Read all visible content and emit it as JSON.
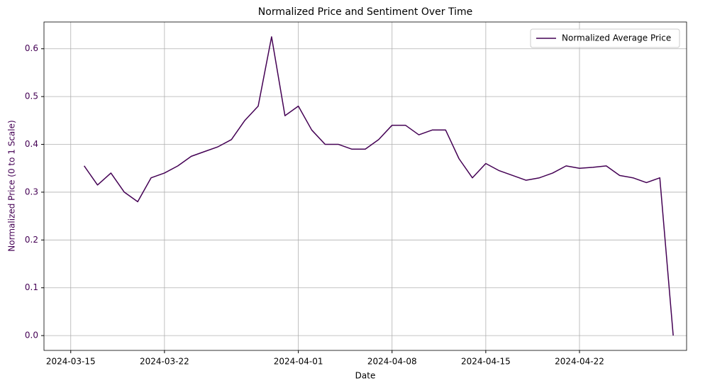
{
  "chart_data": {
    "type": "line",
    "title": "Normalized Price and Sentiment Over Time",
    "x_label": "Date",
    "y_label": "Normalized Price (0 to 1 Scale)",
    "x": [
      "2024-03-16",
      "2024-03-17",
      "2024-03-18",
      "2024-03-19",
      "2024-03-20",
      "2024-03-21",
      "2024-03-22",
      "2024-03-23",
      "2024-03-24",
      "2024-03-25",
      "2024-03-26",
      "2024-03-27",
      "2024-03-28",
      "2024-03-29",
      "2024-03-30",
      "2024-03-31",
      "2024-04-01",
      "2024-04-02",
      "2024-04-03",
      "2024-04-04",
      "2024-04-05",
      "2024-04-06",
      "2024-04-07",
      "2024-04-08",
      "2024-04-09",
      "2024-04-10",
      "2024-04-11",
      "2024-04-12",
      "2024-04-13",
      "2024-04-14",
      "2024-04-15",
      "2024-04-16",
      "2024-04-17",
      "2024-04-18",
      "2024-04-19",
      "2024-04-20",
      "2024-04-21",
      "2024-04-22",
      "2024-04-23",
      "2024-04-24",
      "2024-04-25",
      "2024-04-26",
      "2024-04-27",
      "2024-04-28",
      "2024-04-29"
    ],
    "series": [
      {
        "name": "Normalized Average Price",
        "color": "#440154",
        "values": [
          0.355,
          0.315,
          0.34,
          0.3,
          0.28,
          0.33,
          0.34,
          0.355,
          0.375,
          0.385,
          0.395,
          0.41,
          0.45,
          0.48,
          0.625,
          0.46,
          0.48,
          0.43,
          0.4,
          0.4,
          0.39,
          0.39,
          0.41,
          0.44,
          0.44,
          0.42,
          0.43,
          0.43,
          0.37,
          0.33,
          0.36,
          0.345,
          0.335,
          0.325,
          0.33,
          0.34,
          0.355,
          0.35,
          0.352,
          0.355,
          0.335,
          0.33,
          0.32,
          0.33,
          0.0
        ]
      }
    ],
    "xlim": [
      "2024-03-13",
      "2024-04-30"
    ],
    "xticks": [
      "2024-03-15",
      "2024-03-22",
      "2024-04-01",
      "2024-04-08",
      "2024-04-15",
      "2024-04-22"
    ],
    "ylim": [
      -0.031,
      0.656
    ],
    "yticks": [
      {
        "value": 0,
        "label": "0.0"
      },
      0.1,
      0.2,
      0.3,
      0.4,
      0.5,
      0.6
    ],
    "grid": true,
    "legend": "upper right",
    "y_label_color": "#440154"
  }
}
